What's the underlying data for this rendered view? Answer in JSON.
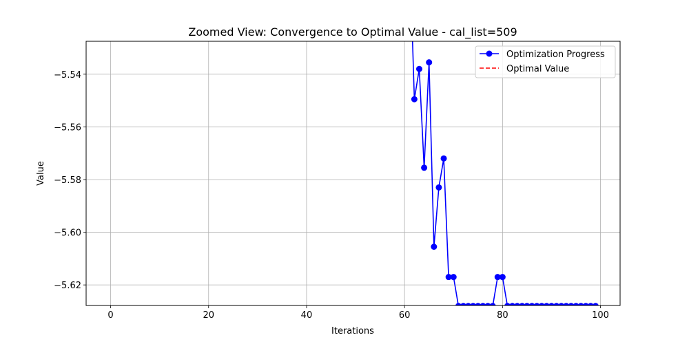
{
  "chart_data": {
    "type": "line",
    "title": "Zoomed View: Convergence to Optimal Value - cal_list=509",
    "xlabel": "Iterations",
    "ylabel": "Value",
    "xlim": [
      -5,
      104
    ],
    "ylim": [
      -5.6278,
      -5.5275
    ],
    "xticks": [
      0,
      20,
      40,
      60,
      80,
      100
    ],
    "xtick_labels": [
      "0",
      "20",
      "40",
      "60",
      "80",
      "100"
    ],
    "yticks": [
      -5.54,
      -5.56,
      -5.58,
      -5.6,
      -5.62
    ],
    "ytick_labels": [
      "−5.54",
      "−5.56",
      "−5.58",
      "−5.60",
      "−5.62"
    ],
    "grid": true,
    "legend_position": "top-right",
    "series": [
      {
        "name": "Optimization Progress",
        "color": "#0000ff",
        "style": "line-marker",
        "x": [
          61,
          62,
          63,
          64,
          65,
          66,
          67,
          68,
          69,
          70,
          71,
          72,
          73,
          74,
          75,
          76,
          77,
          78,
          79,
          80,
          81,
          82,
          83,
          84,
          85,
          86,
          87,
          88,
          89,
          90,
          91,
          92,
          93,
          94,
          95,
          96,
          97,
          98,
          99
        ],
        "y": [
          -5.49,
          -5.5495,
          -5.538,
          -5.5755,
          -5.5355,
          -5.6055,
          -5.583,
          -5.572,
          -5.617,
          -5.617,
          -5.628,
          -5.628,
          -5.628,
          -5.628,
          -5.628,
          -5.628,
          -5.628,
          -5.628,
          -5.617,
          -5.617,
          -5.628,
          -5.628,
          -5.628,
          -5.628,
          -5.628,
          -5.628,
          -5.628,
          -5.628,
          -5.628,
          -5.628,
          -5.628,
          -5.628,
          -5.628,
          -5.628,
          -5.628,
          -5.628,
          -5.628,
          -5.628,
          -5.628
        ]
      },
      {
        "name": "Optimal Value",
        "color": "#ff0000",
        "style": "dashed",
        "value": -5.628
      }
    ]
  }
}
